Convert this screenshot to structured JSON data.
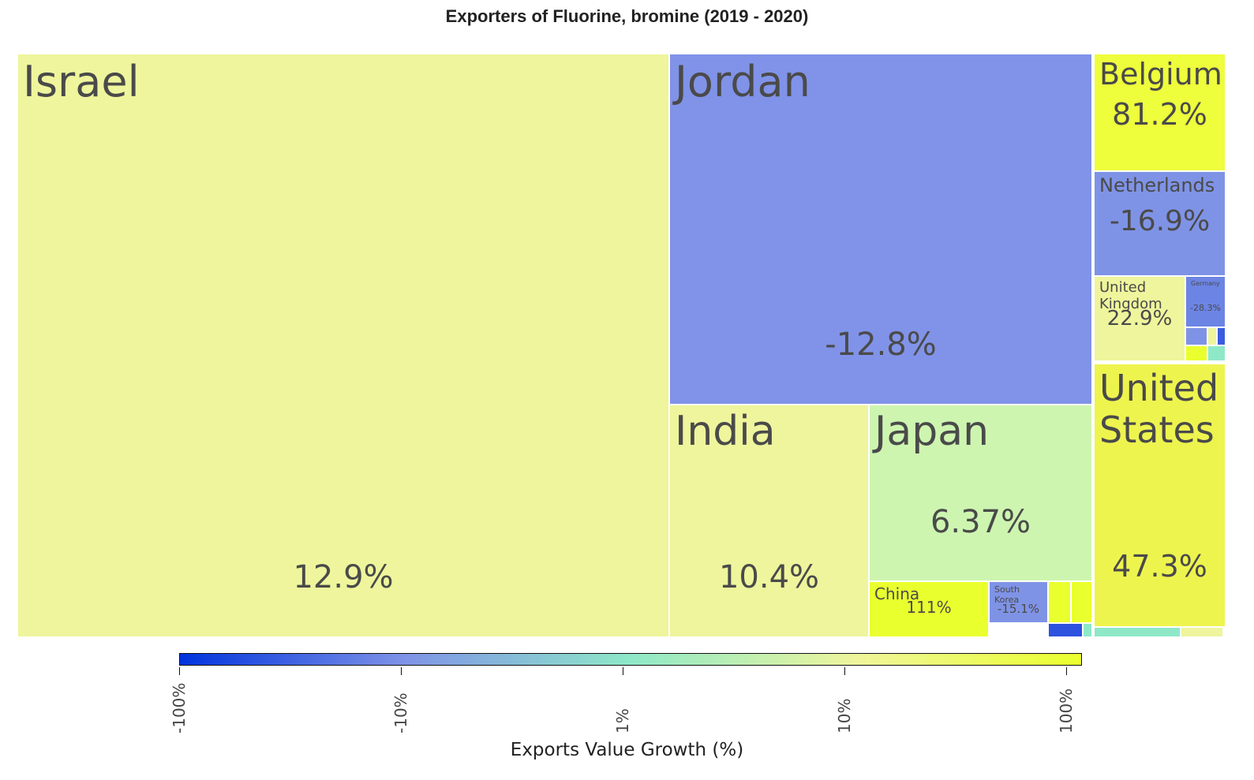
{
  "chart_data": {
    "type": "treemap",
    "title": "Exporters of Fluorine, bromine (2019 - 2020)",
    "colorbar": {
      "label": "Exports Value Growth (%)",
      "ticks": [
        "-100%",
        "-10%",
        "1%",
        "10%",
        "100%"
      ],
      "colors": [
        "#0033dd",
        "#7f93e6",
        "#8ee8c8",
        "#eef59c",
        "#eaff2e"
      ]
    },
    "tiles": [
      {
        "name": "Israel",
        "growth": "12.9%",
        "color": "#eef59c"
      },
      {
        "name": "Jordan",
        "growth": "-12.8%",
        "color": "#8093e8"
      },
      {
        "name": "India",
        "growth": "10.4%",
        "color": "#eef59c"
      },
      {
        "name": "Japan",
        "growth": "6.37%",
        "color": "#cdf5b0"
      },
      {
        "name": "China",
        "growth": "111%",
        "color": "#eaff2e"
      },
      {
        "name": "South Korea",
        "growth": "-15.1%",
        "color": "#7f93e6"
      },
      {
        "name": "Belgium",
        "growth": "81.2%",
        "color": "#eefd3c"
      },
      {
        "name": "Netherlands",
        "growth": "-16.9%",
        "color": "#7f93e6"
      },
      {
        "name": "United Kingdom",
        "growth": "22.9%",
        "color": "#eef59c"
      },
      {
        "name": "Germany",
        "growth": "-28.3%",
        "color": "#6c84e4"
      },
      {
        "name": "United States",
        "growth": "47.3%",
        "color": "#eef44e"
      }
    ]
  }
}
